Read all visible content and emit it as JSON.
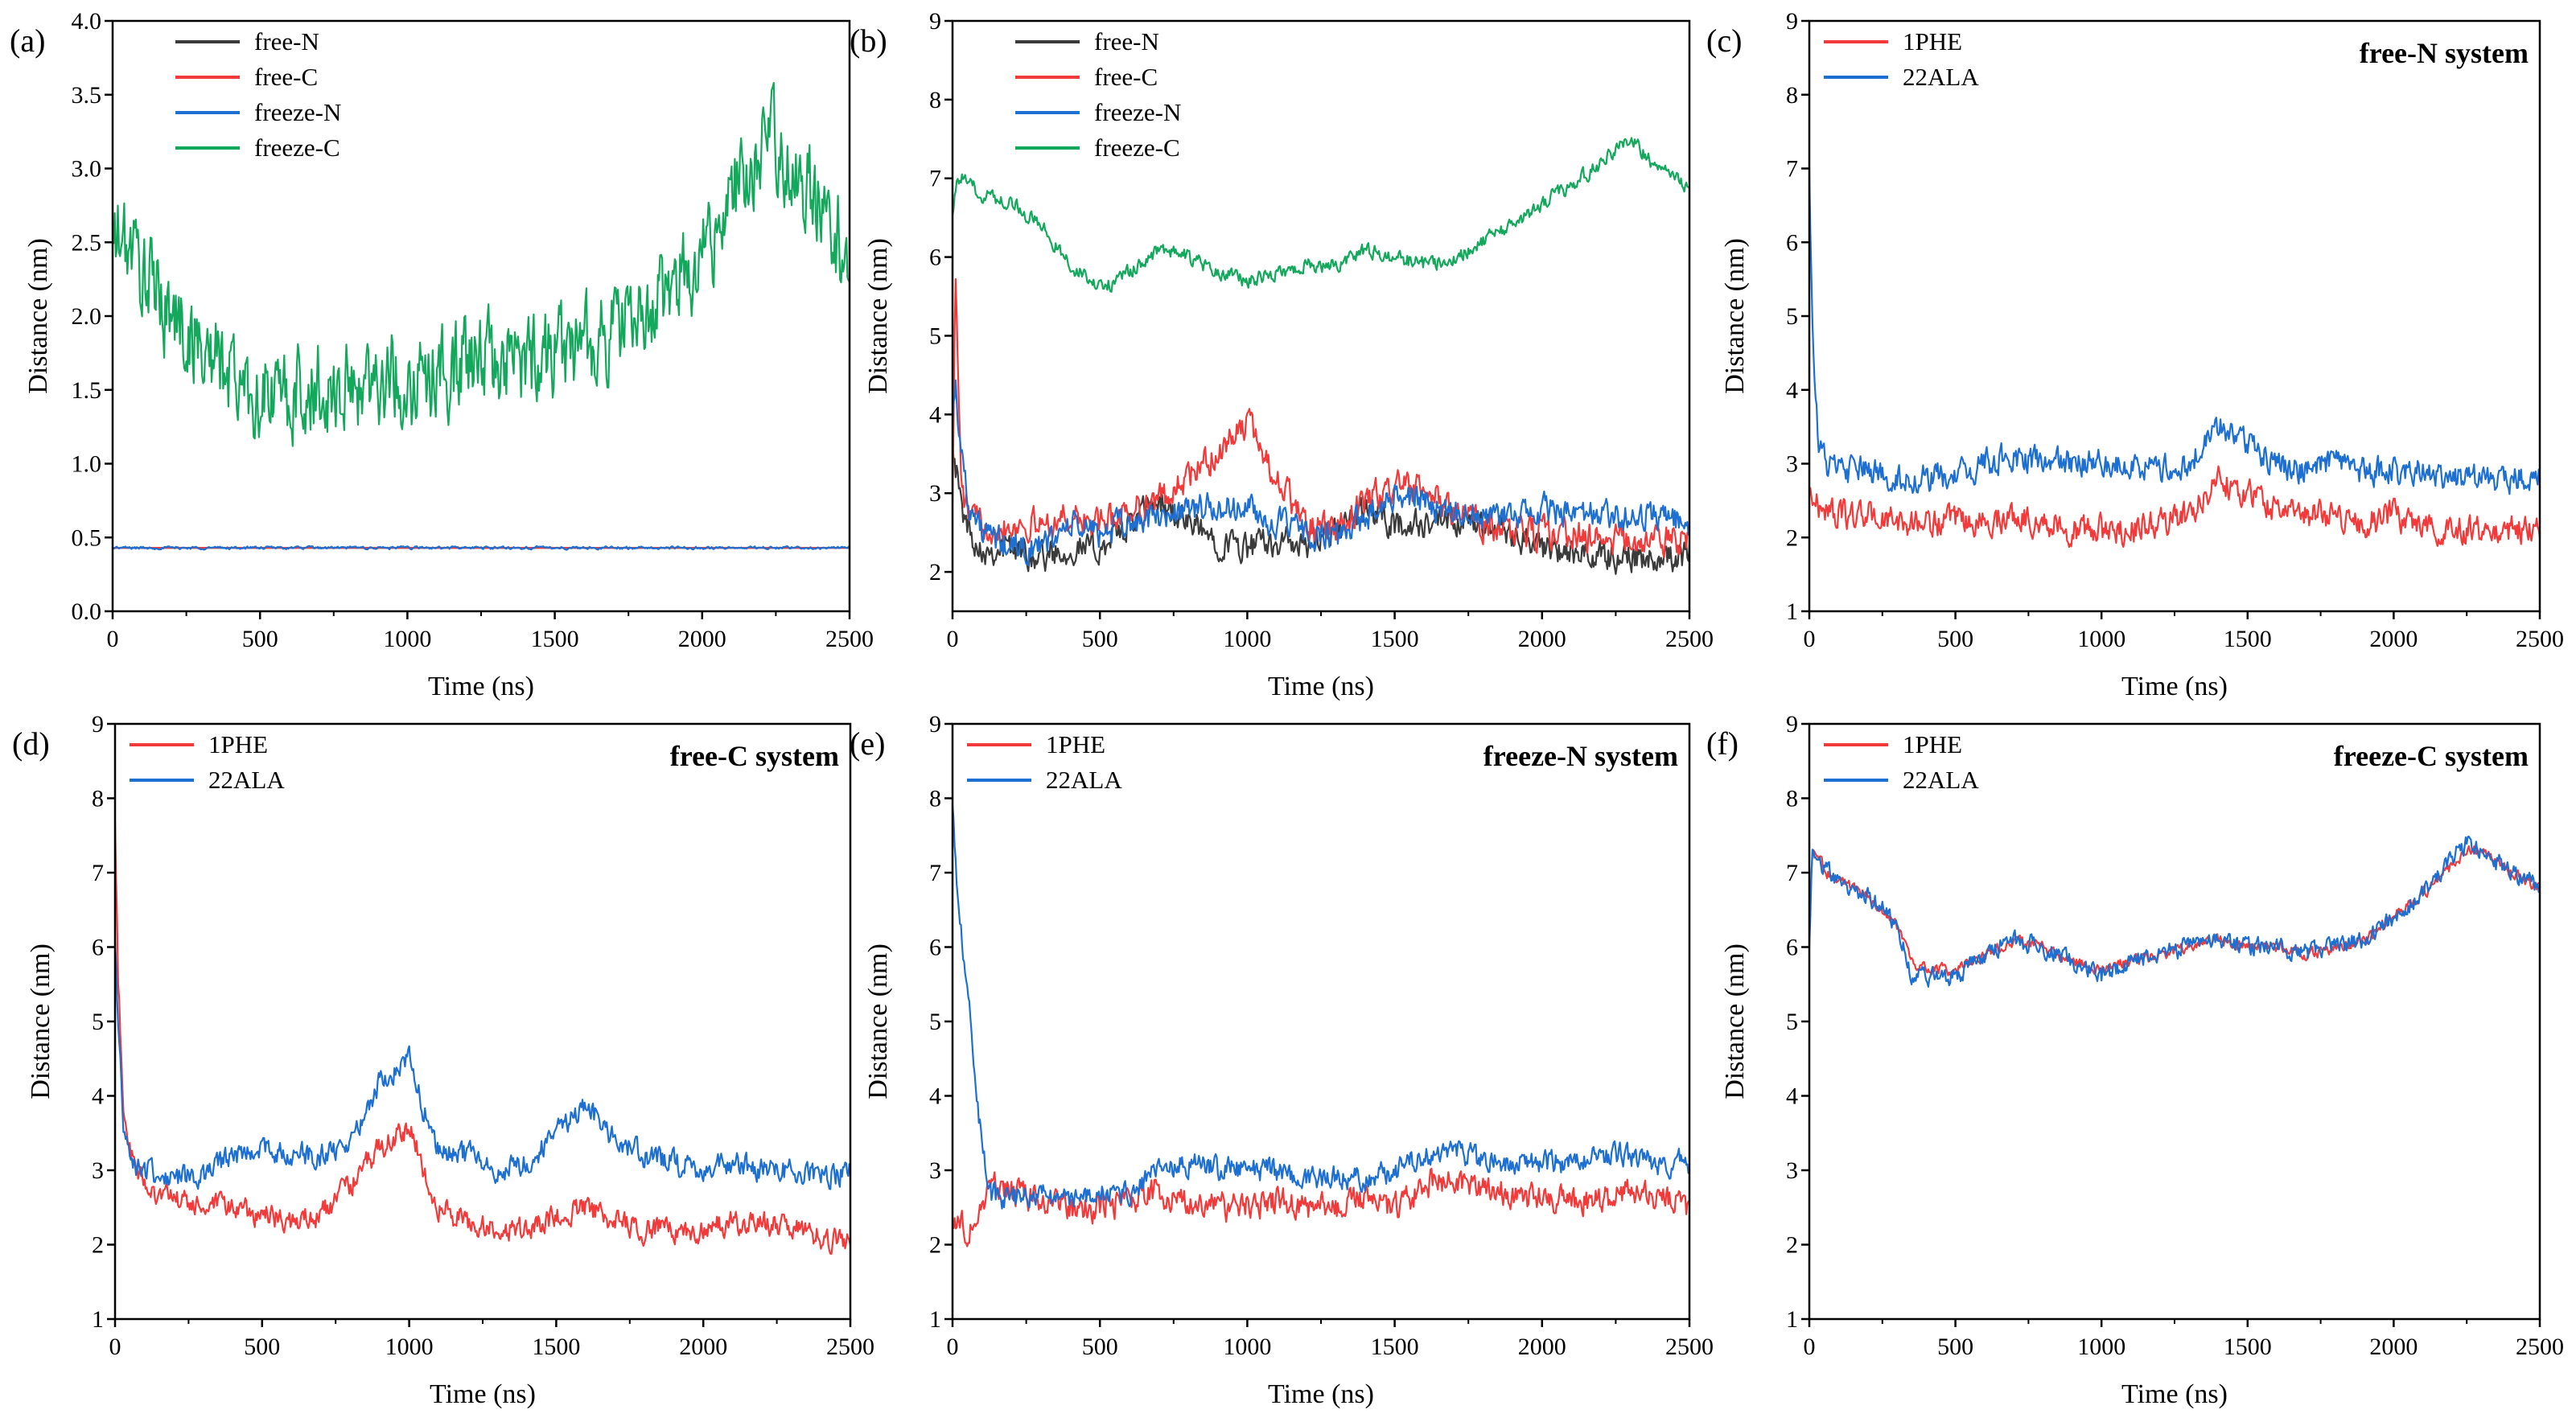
{
  "colors": {
    "free-N": "#3b3b3b",
    "free-C": "#f23a3a",
    "freeze-N": "#1d6fd1",
    "freeze-C": "#13a85c",
    "1PHE": "#f23a3a",
    "22ALA": "#1d6fd1"
  },
  "chart_data": [
    {
      "type": "line",
      "panel": "(a)",
      "annotation": "",
      "xlabel": "Time (ns)",
      "ylabel": "Distance (nm)",
      "xlim": [
        0,
        2500
      ],
      "ylim": [
        0.0,
        4.0
      ],
      "xticks": [
        "0",
        "500",
        "1000",
        "1500",
        "2000",
        "2500"
      ],
      "yticks": [
        "0.0",
        "0.5",
        "1.0",
        "1.5",
        "2.0",
        "2.5",
        "3.0",
        "3.5",
        "4.0"
      ],
      "ytick_values": [
        0,
        0.5,
        1,
        1.5,
        2,
        2.5,
        3,
        3.5,
        4
      ],
      "legend_position": "top-left",
      "x": [
        0,
        50,
        100,
        200,
        300,
        400,
        500,
        600,
        700,
        800,
        900,
        1000,
        1100,
        1200,
        1300,
        1400,
        1500,
        1600,
        1700,
        1800,
        1900,
        2000,
        2100,
        2200,
        2250,
        2300,
        2400,
        2500
      ],
      "series": [
        {
          "name": "free-N",
          "noise": 0.0,
          "values": [
            0.43,
            0.43,
            0.43,
            0.43,
            0.43,
            0.43,
            0.43,
            0.43,
            0.43,
            0.43,
            0.43,
            0.43,
            0.43,
            0.43,
            0.43,
            0.43,
            0.43,
            0.43,
            0.43,
            0.43,
            0.43,
            0.43,
            0.43,
            0.43,
            0.43,
            0.43,
            0.43,
            0.43
          ]
        },
        {
          "name": "free-C",
          "noise": 0.0,
          "values": [
            0.43,
            0.43,
            0.43,
            0.43,
            0.43,
            0.43,
            0.43,
            0.43,
            0.43,
            0.43,
            0.43,
            0.43,
            0.43,
            0.43,
            0.43,
            0.43,
            0.43,
            0.43,
            0.43,
            0.43,
            0.43,
            0.43,
            0.43,
            0.43,
            0.43,
            0.43,
            0.43,
            0.43
          ]
        },
        {
          "name": "freeze-N",
          "noise": 0.015,
          "values": [
            0.43,
            0.43,
            0.43,
            0.43,
            0.43,
            0.43,
            0.43,
            0.43,
            0.43,
            0.43,
            0.43,
            0.43,
            0.43,
            0.43,
            0.43,
            0.43,
            0.43,
            0.43,
            0.43,
            0.43,
            0.43,
            0.43,
            0.43,
            0.43,
            0.43,
            0.43,
            0.43,
            0.43
          ]
        },
        {
          "name": "freeze-C",
          "noise": 0.5,
          "values": [
            2.5,
            2.5,
            2.3,
            2.0,
            1.8,
            1.6,
            1.45,
            1.45,
            1.5,
            1.5,
            1.6,
            1.55,
            1.6,
            1.7,
            1.7,
            1.7,
            1.8,
            1.8,
            1.9,
            2.0,
            2.2,
            2.4,
            2.8,
            3.05,
            3.2,
            3.0,
            2.8,
            2.4
          ]
        }
      ]
    },
    {
      "type": "line",
      "panel": "(b)",
      "annotation": "",
      "xlabel": "Time (ns)",
      "ylabel": "Distance (nm)",
      "xlim": [
        0,
        2500
      ],
      "ylim": [
        1.5,
        9
      ],
      "xticks": [
        "0",
        "500",
        "1000",
        "1500",
        "2000",
        "2500"
      ],
      "yticks": [
        "2",
        "3",
        "4",
        "5",
        "6",
        "7",
        "8",
        "9"
      ],
      "ytick_values": [
        2,
        3,
        4,
        5,
        6,
        7,
        8,
        9
      ],
      "legend_position": "top-left",
      "x": [
        0,
        10,
        30,
        60,
        100,
        200,
        300,
        400,
        500,
        600,
        700,
        800,
        900,
        1000,
        1100,
        1200,
        1300,
        1400,
        1500,
        1600,
        1700,
        1800,
        1900,
        2000,
        2100,
        2200,
        2300,
        2400,
        2500
      ],
      "series": [
        {
          "name": "free-N",
          "noise": 0.3,
          "values": [
            3.8,
            3.4,
            2.8,
            2.5,
            2.3,
            2.3,
            2.2,
            2.3,
            2.3,
            2.6,
            2.9,
            2.6,
            2.4,
            2.3,
            2.4,
            2.3,
            2.5,
            2.8,
            2.6,
            2.6,
            2.6,
            2.6,
            2.5,
            2.3,
            2.2,
            2.2,
            2.2,
            2.2,
            2.2
          ]
        },
        {
          "name": "free-C",
          "noise": 0.3,
          "values": [
            3.0,
            5.8,
            3.0,
            2.7,
            2.6,
            2.6,
            2.6,
            2.7,
            2.6,
            2.8,
            2.9,
            3.2,
            3.5,
            3.9,
            3.2,
            2.6,
            2.5,
            2.9,
            3.1,
            3.0,
            2.8,
            2.6,
            2.5,
            2.5,
            2.5,
            2.4,
            2.4,
            2.4,
            2.4
          ]
        },
        {
          "name": "freeze-N",
          "noise": 0.3,
          "values": [
            4.0,
            4.4,
            3.5,
            2.8,
            2.5,
            2.3,
            2.3,
            2.6,
            2.5,
            2.6,
            2.7,
            2.8,
            2.8,
            2.8,
            2.6,
            2.5,
            2.4,
            2.7,
            3.0,
            2.9,
            2.8,
            2.7,
            2.7,
            2.8,
            2.7,
            2.7,
            2.7,
            2.7,
            2.6
          ]
        },
        {
          "name": "freeze-C",
          "noise": 0.15,
          "values": [
            6.6,
            6.9,
            7.0,
            6.9,
            6.8,
            6.7,
            6.4,
            5.9,
            5.6,
            5.8,
            6.1,
            6.0,
            5.8,
            5.7,
            5.8,
            5.9,
            5.9,
            6.1,
            6.0,
            5.9,
            6.0,
            6.2,
            6.4,
            6.7,
            6.9,
            7.2,
            7.5,
            7.1,
            6.9
          ]
        }
      ]
    },
    {
      "type": "line",
      "panel": "(c)",
      "annotation": "free-N system",
      "xlabel": "Time (ns)",
      "ylabel": "Distance (nm)",
      "xlim": [
        0,
        2500
      ],
      "ylim": [
        1,
        9
      ],
      "xticks": [
        "0",
        "500",
        "1000",
        "1500",
        "2000",
        "2500"
      ],
      "yticks": [
        "1",
        "2",
        "3",
        "4",
        "5",
        "6",
        "7",
        "8",
        "9"
      ],
      "ytick_values": [
        1,
        2,
        3,
        4,
        5,
        6,
        7,
        8,
        9
      ],
      "legend_position": "top-left",
      "x": [
        0,
        10,
        30,
        60,
        100,
        200,
        300,
        400,
        500,
        600,
        700,
        800,
        900,
        1000,
        1100,
        1200,
        1300,
        1400,
        1500,
        1600,
        1700,
        1800,
        1900,
        2000,
        2100,
        2200,
        2300,
        2400,
        2500
      ],
      "series": [
        {
          "name": "1PHE",
          "noise": 0.3,
          "values": [
            2.6,
            2.6,
            2.4,
            2.4,
            2.3,
            2.3,
            2.2,
            2.2,
            2.2,
            2.2,
            2.3,
            2.2,
            2.1,
            2.1,
            2.1,
            2.2,
            2.3,
            2.8,
            2.6,
            2.4,
            2.3,
            2.3,
            2.2,
            2.3,
            2.2,
            2.1,
            2.1,
            2.1,
            2.1
          ]
        },
        {
          "name": "22ALA",
          "noise": 0.3,
          "values": [
            7.0,
            5.0,
            3.3,
            3.0,
            2.9,
            2.9,
            2.8,
            2.8,
            2.8,
            3.0,
            3.1,
            3.0,
            3.0,
            3.0,
            3.0,
            2.9,
            3.0,
            3.5,
            3.3,
            3.0,
            2.9,
            3.0,
            2.9,
            2.9,
            2.9,
            2.8,
            2.8,
            2.8,
            2.9
          ]
        }
      ]
    },
    {
      "type": "line",
      "panel": "(d)",
      "annotation": "free-C system",
      "xlabel": "Time (ns)",
      "ylabel": "Distance (nm)",
      "xlim": [
        0,
        2500
      ],
      "ylim": [
        1,
        9
      ],
      "xticks": [
        "0",
        "500",
        "1000",
        "1500",
        "2000",
        "2500"
      ],
      "yticks": [
        "1",
        "2",
        "3",
        "4",
        "5",
        "6",
        "7",
        "8",
        "9"
      ],
      "ytick_values": [
        1,
        2,
        3,
        4,
        5,
        6,
        7,
        8,
        9
      ],
      "legend_position": "top-left",
      "x": [
        0,
        10,
        30,
        60,
        100,
        200,
        300,
        400,
        500,
        600,
        700,
        800,
        900,
        1000,
        1050,
        1100,
        1200,
        1300,
        1400,
        1500,
        1600,
        1700,
        1800,
        1900,
        2000,
        2100,
        2200,
        2300,
        2400,
        2500
      ],
      "series": [
        {
          "name": "1PHE",
          "noise": 0.25,
          "values": [
            7.6,
            5.6,
            3.8,
            3.1,
            2.8,
            2.6,
            2.5,
            2.5,
            2.4,
            2.3,
            2.4,
            2.8,
            3.3,
            3.6,
            3.0,
            2.5,
            2.3,
            2.2,
            2.2,
            2.4,
            2.5,
            2.3,
            2.2,
            2.2,
            2.2,
            2.3,
            2.3,
            2.2,
            2.1,
            2.0
          ]
        },
        {
          "name": "22ALA",
          "noise": 0.25,
          "values": [
            6.0,
            5.0,
            3.6,
            3.1,
            3.0,
            2.9,
            2.9,
            3.2,
            3.3,
            3.2,
            3.2,
            3.4,
            4.2,
            4.5,
            3.8,
            3.3,
            3.2,
            3.0,
            3.1,
            3.5,
            3.9,
            3.4,
            3.2,
            3.1,
            3.0,
            3.1,
            3.0,
            3.0,
            2.9,
            3.0
          ]
        }
      ]
    },
    {
      "type": "line",
      "panel": "(e)",
      "annotation": "freeze-N system",
      "xlabel": "Time (ns)",
      "ylabel": "Distance (nm)",
      "xlim": [
        0,
        2500
      ],
      "ylim": [
        1,
        9
      ],
      "xticks": [
        "0",
        "500",
        "1000",
        "1500",
        "2000",
        "2500"
      ],
      "yticks": [
        "1",
        "2",
        "3",
        "4",
        "5",
        "6",
        "7",
        "8",
        "9"
      ],
      "ytick_values": [
        1,
        2,
        3,
        4,
        5,
        6,
        7,
        8,
        9
      ],
      "legend_position": "top-left",
      "x": [
        0,
        20,
        50,
        80,
        100,
        130,
        160,
        200,
        300,
        400,
        500,
        600,
        700,
        800,
        900,
        1000,
        1100,
        1200,
        1300,
        1400,
        1500,
        1600,
        1700,
        1800,
        1900,
        2000,
        2100,
        2200,
        2300,
        2400,
        2500
      ],
      "series": [
        {
          "name": "1PHE",
          "noise": 0.3,
          "values": [
            2.4,
            2.3,
            2.2,
            2.3,
            2.5,
            2.9,
            2.8,
            2.7,
            2.6,
            2.5,
            2.5,
            2.6,
            2.7,
            2.6,
            2.5,
            2.5,
            2.6,
            2.5,
            2.5,
            2.6,
            2.5,
            2.8,
            2.9,
            2.8,
            2.7,
            2.6,
            2.6,
            2.6,
            2.7,
            2.6,
            2.5
          ]
        },
        {
          "name": "22ALA",
          "noise": 0.25,
          "values": [
            8.0,
            6.6,
            5.5,
            4.2,
            3.3,
            2.7,
            2.6,
            2.6,
            2.7,
            2.6,
            2.7,
            2.7,
            3.0,
            3.1,
            3.0,
            3.0,
            3.0,
            2.9,
            2.9,
            2.9,
            3.0,
            3.2,
            3.3,
            3.1,
            3.1,
            3.1,
            3.1,
            3.2,
            3.2,
            3.1,
            3.1
          ]
        }
      ]
    },
    {
      "type": "line",
      "panel": "(f)",
      "annotation": "freeze-C system",
      "xlabel": "Time (ns)",
      "ylabel": "Distance (nm)",
      "xlim": [
        0,
        2500
      ],
      "ylim": [
        1,
        9
      ],
      "xticks": [
        "0",
        "500",
        "1000",
        "1500",
        "2000",
        "2500"
      ],
      "yticks": [
        "1",
        "2",
        "3",
        "4",
        "5",
        "6",
        "7",
        "8",
        "9"
      ],
      "ytick_values": [
        1,
        2,
        3,
        4,
        5,
        6,
        7,
        8,
        9
      ],
      "legend_position": "top-left",
      "x": [
        0,
        10,
        30,
        60,
        100,
        200,
        300,
        350,
        400,
        500,
        600,
        700,
        800,
        900,
        1000,
        1100,
        1200,
        1300,
        1400,
        1500,
        1600,
        1700,
        1800,
        1900,
        2000,
        2100,
        2200,
        2250,
        2300,
        2400,
        2500
      ],
      "series": [
        {
          "name": "1PHE",
          "noise": 0.12,
          "values": [
            6.2,
            7.3,
            7.2,
            7.0,
            6.9,
            6.7,
            6.3,
            5.8,
            5.7,
            5.7,
            5.9,
            6.1,
            6.0,
            5.8,
            5.7,
            5.8,
            5.9,
            6.0,
            6.1,
            6.0,
            6.0,
            5.9,
            6.0,
            6.1,
            6.4,
            6.7,
            7.1,
            7.3,
            7.3,
            7.0,
            6.8
          ]
        },
        {
          "name": "22ALA",
          "noise": 0.2,
          "values": [
            6.0,
            7.3,
            7.2,
            7.0,
            6.9,
            6.7,
            6.3,
            5.6,
            5.6,
            5.6,
            5.9,
            6.1,
            6.0,
            5.8,
            5.6,
            5.8,
            5.9,
            6.0,
            6.1,
            6.0,
            6.0,
            5.9,
            6.0,
            6.1,
            6.4,
            6.7,
            7.2,
            7.4,
            7.3,
            7.0,
            6.8
          ]
        }
      ]
    }
  ]
}
